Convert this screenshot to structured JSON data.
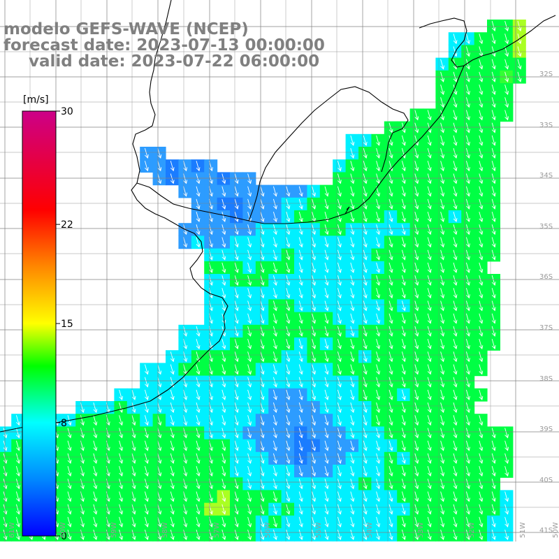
{
  "title": {
    "line1": "modelo GEFS-WAVE (NCEP)",
    "line2": "forecast date: 2023-07-13 00:00:00",
    "line3": "valid date: 2023-07-22 06:00:00"
  },
  "colorbar": {
    "unit": "[m/s]",
    "ticks": [
      "30",
      "22",
      "15",
      "8",
      "0"
    ],
    "tick_values": [
      30,
      22,
      15,
      8,
      0
    ],
    "min": 0,
    "max": 30,
    "stops": [
      {
        "v": 0,
        "color": "#0000ff"
      },
      {
        "v": 4,
        "color": "#0088ff"
      },
      {
        "v": 8,
        "color": "#00ffff"
      },
      {
        "v": 12,
        "color": "#00ff00"
      },
      {
        "v": 15,
        "color": "#ffff00"
      },
      {
        "v": 19,
        "color": "#ff8800"
      },
      {
        "v": 23,
        "color": "#ff0000"
      },
      {
        "v": 30,
        "color": "#cc0088"
      }
    ]
  },
  "map": {
    "field": "wind speed",
    "arrow_direction": "toward SSW",
    "land_color": "#ffffff",
    "coastline_color": "#000000",
    "grid_color": "#808080",
    "arrow_color": "#ffffff",
    "lat_labels": [
      "32S",
      "33S",
      "34S",
      "35S",
      "36S",
      "37S",
      "38S",
      "39S",
      "40S",
      "41S"
    ],
    "lon_labels": [
      "61W",
      "60W",
      "59W",
      "58W",
      "57W",
      "56W",
      "55W",
      "54W",
      "53W",
      "52W",
      "51W",
      "50W"
    ],
    "field_pattern": [
      "......................................ggy",
      "...................................ccgggy",
      "...................................cggggy",
      "..................................cgggggg",
      "..................................gggggGg",
      "..................................gggggg",
      "..................................gggggg",
      "................................gggggggg",
      "..............................ggggggggg",
      "...........................ccgggggggggg",
      "...........bb..............cggggggggggg",
      "...........bbBbBb.........cgggggggggggg",
      "............bBbbbBbb......ggggggggggggg",
      "..............bbbbbbbbbbcgggggggggggggg",
      "...............bbBBbbbccggggggggggggggg",
      "...............bbbBbbbcgggggggcggggcggg",
      "..............bbbbbbcccccggcccccggggggg",
      "..............bcbbccccccccccccggggggggg",
      "................ccccccgccccccgggggggggg",
      "................gggcgggcccccccgggggggg",
      "................ccgggccccccccgggggggggg",
      "................cccccccccccccgggggggggg",
      "................cccccggcccccccgcggggggg",
      "................cccccgggggccccggggggggg",
      "..............cccccggggggggcggggggggggg",
      "..............ccccgggggcgcggggggggggggg",
      ".............ccgggggggccggggcggggggggg",
      "...........cccggggggccccccgggggggggggg",
      "...........cccccccccccccccccggggggggg",
      ".........ccccccccccccbbbccccgggcgggggg",
      "......cccgcccccccccccbbbbccccgggggggg",
      ".cccccgggggcgcccccccbbbbbbcccggggggggg",
      "ccggggggggggggggcccbbbbBbbbcccgggggggggg",
      "cgggggggggggggggggccbbbBBbbbcccggggggggg",
      "ggggggggggggggggggcccbbBbbbcccgcgggggggg",
      "ggggggggggggggggggcccccbbbccccgggggggggg",
      "gggggggggggggggggggcccccccccgcggggggggg",
      "gggggggggggggggggyggggcccccccccggggggggc",
      "ggggggggggggggggyygggcgcccccccccgggggggc",
      "ggggggggggggggggggggcgcccccccccgggggggcc",
      "ggggggggggggggggggggcccccccccccgggggggcc"
    ],
    "pattern_legend": {
      "B": "blue (~4 m/s)",
      "b": "light blue (~6 m/s)",
      "c": "cyan (~9 m/s)",
      "g": "green (~11-12 m/s)",
      "G": "bright green (~13 m/s)",
      "y": "yellow-green (~14 m/s)"
    },
    "pattern_colors": {
      "B": "#1a7cff",
      "b": "#2d9cff",
      "c": "#00f0ff",
      "g": "#00ff44",
      "G": "#33ff33",
      "y": "#aaff22"
    }
  }
}
